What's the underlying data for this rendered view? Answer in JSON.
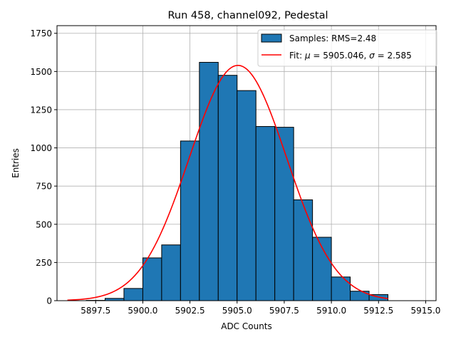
{
  "chart_data": {
    "type": "bar",
    "title": "Run 458, channel092, Pedestal",
    "xlabel": "ADC Counts",
    "ylabel": "Entries",
    "xlim": [
      5895.45,
      5915.55
    ],
    "ylim": [
      0,
      1800
    ],
    "xticks": [
      5897.5,
      5900.0,
      5902.5,
      5905.0,
      5907.5,
      5910.0,
      5912.5,
      5915.0
    ],
    "xtick_labels": [
      "5897.5",
      "5900.0",
      "5902.5",
      "5905.0",
      "5907.5",
      "5910.0",
      "5912.5",
      "5915.0"
    ],
    "yticks": [
      0,
      250,
      500,
      750,
      1000,
      1250,
      1500,
      1750
    ],
    "ytick_labels": [
      "0",
      "250",
      "500",
      "750",
      "1000",
      "1250",
      "1500",
      "1750"
    ],
    "grid": true,
    "legend_position": "top-right",
    "histogram": {
      "name": "Samples: RMS=2.48",
      "color": "#1f77b4",
      "edgecolor": "#000000",
      "bin_edges": [
        5897,
        5898,
        5899,
        5900,
        5901,
        5902,
        5903,
        5904,
        5905,
        5906,
        5907,
        5908,
        5909,
        5910,
        5911,
        5912,
        5913
      ],
      "counts": [
        2,
        15,
        80,
        280,
        365,
        1045,
        1560,
        1475,
        1375,
        1140,
        1135,
        660,
        415,
        155,
        62,
        40
      ]
    },
    "fit": {
      "name": "Fit: μ = 5905.046, σ = 2.585",
      "label_prefix": "Fit: ",
      "mu_symbol": "μ",
      "mu_value": " = 5905.046, ",
      "sigma_symbol": "σ",
      "sigma_value": " = 2.585",
      "color": "#ff0000",
      "mu": 5905.046,
      "sigma": 2.585,
      "amplitude": 1540,
      "x_range": [
        5896.0,
        5913.0
      ]
    }
  }
}
